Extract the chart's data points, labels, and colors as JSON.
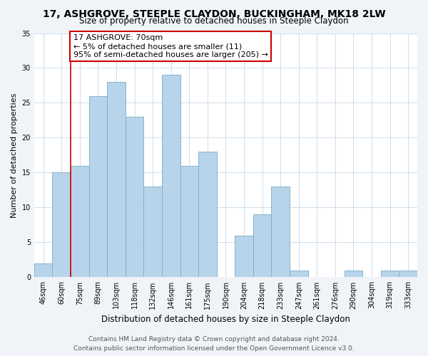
{
  "title": "17, ASHGROVE, STEEPLE CLAYDON, BUCKINGHAM, MK18 2LW",
  "subtitle": "Size of property relative to detached houses in Steeple Claydon",
  "xlabel": "Distribution of detached houses by size in Steeple Claydon",
  "ylabel": "Number of detached properties",
  "bar_labels": [
    "46sqm",
    "60sqm",
    "75sqm",
    "89sqm",
    "103sqm",
    "118sqm",
    "132sqm",
    "146sqm",
    "161sqm",
    "175sqm",
    "190sqm",
    "204sqm",
    "218sqm",
    "233sqm",
    "247sqm",
    "261sqm",
    "276sqm",
    "290sqm",
    "304sqm",
    "319sqm",
    "333sqm"
  ],
  "bar_values": [
    2,
    15,
    16,
    26,
    28,
    23,
    13,
    29,
    16,
    18,
    0,
    6,
    9,
    13,
    1,
    0,
    0,
    1,
    0,
    1,
    1
  ],
  "bar_color": "#b8d4ea",
  "bar_edge_color": "#7aaaca",
  "vline_color": "#cc0000",
  "vline_pos": 1.5,
  "annotation_text": "17 ASHGROVE: 70sqm\n← 5% of detached houses are smaller (11)\n95% of semi-detached houses are larger (205) →",
  "annotation_box_color": "#ffffff",
  "annotation_box_edge": "#cc0000",
  "ylim": [
    0,
    35
  ],
  "yticks": [
    0,
    5,
    10,
    15,
    20,
    25,
    30,
    35
  ],
  "footer_line1": "Contains HM Land Registry data © Crown copyright and database right 2024.",
  "footer_line2": "Contains public sector information licensed under the Open Government Licence v3.0.",
  "bg_color": "#f0f4f8",
  "plot_bg_color": "#ffffff",
  "grid_color": "#c8d8e8",
  "title_fontsize": 10,
  "subtitle_fontsize": 8.5,
  "xlabel_fontsize": 8.5,
  "ylabel_fontsize": 8,
  "tick_fontsize": 7,
  "footer_fontsize": 6.5,
  "annotation_fontsize": 8
}
